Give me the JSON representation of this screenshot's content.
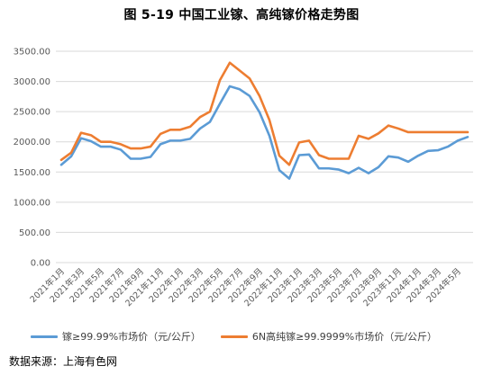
{
  "title": "图 5-19 中国工业镓、高纯镓价格走势图",
  "source": "数据来源：上海有色网",
  "chart_data": {
    "type": "line",
    "title": "图 5-19 中国工业镓、高纯镓价格走势图",
    "xlabel": "",
    "ylabel": "",
    "ylim": [
      0,
      3500
    ],
    "yticks": [
      "0.00",
      "500.00",
      "1000.00",
      "1500.00",
      "2000.00",
      "2500.00",
      "3000.00",
      "3500.00"
    ],
    "grid": true,
    "legend_position": "bottom",
    "x": [
      "2021年1月",
      "2021年2月",
      "2021年3月",
      "2021年4月",
      "2021年5月",
      "2021年6月",
      "2021年7月",
      "2021年8月",
      "2021年9月",
      "2021年10月",
      "2021年11月",
      "2021年12月",
      "2022年1月",
      "2022年2月",
      "2022年3月",
      "2022年4月",
      "2022年5月",
      "2022年6月",
      "2022年7月",
      "2022年8月",
      "2022年9月",
      "2022年10月",
      "2022年11月",
      "2022年12月",
      "2023年1月",
      "2023年2月",
      "2023年3月",
      "2023年4月",
      "2023年5月",
      "2023年6月",
      "2023年7月",
      "2023年8月",
      "2023年9月",
      "2023年10月",
      "2023年11月",
      "2023年12月",
      "2024年1月",
      "2024年2月",
      "2024年3月",
      "2024年4月",
      "2024年5月",
      "2024年6月"
    ],
    "x_tick_labels": [
      "2021年1月",
      "2021年3月",
      "2021年5月",
      "2021年7月",
      "2021年9月",
      "2021年11月",
      "2022年1月",
      "2022年3月",
      "2022年5月",
      "2022年7月",
      "2022年9月",
      "2022年11月",
      "2023年1月",
      "2023年3月",
      "2023年5月",
      "2023年7月",
      "2023年9月",
      "2023年11月",
      "2024年1月",
      "2024年3月",
      "2024年5月"
    ],
    "series": [
      {
        "name": "镓≥99.99%市场价（元/公斤）",
        "color": "#5b9bd5",
        "values": [
          1620,
          1760,
          2060,
          2010,
          1920,
          1920,
          1870,
          1720,
          1720,
          1750,
          1960,
          2020,
          2020,
          2050,
          2220,
          2330,
          2630,
          2920,
          2870,
          2760,
          2490,
          2100,
          1530,
          1390,
          1780,
          1790,
          1560,
          1560,
          1540,
          1480,
          1570,
          1480,
          1580,
          1760,
          1740,
          1670,
          1770,
          1850,
          1860,
          1920,
          2020,
          2080
        ]
      },
      {
        "name": "6N高纯镓≥99.9999%市场价（元/公斤）",
        "color": "#ed7d31",
        "values": [
          1700,
          1820,
          2150,
          2110,
          2000,
          2000,
          1960,
          1890,
          1890,
          1920,
          2130,
          2200,
          2200,
          2250,
          2410,
          2500,
          3020,
          3310,
          3180,
          3050,
          2760,
          2360,
          1770,
          1620,
          1990,
          2020,
          1780,
          1720,
          1720,
          1720,
          2100,
          2050,
          2140,
          2270,
          2220,
          2160,
          2160,
          2160,
          2160,
          2160,
          2160,
          2160
        ]
      }
    ]
  }
}
